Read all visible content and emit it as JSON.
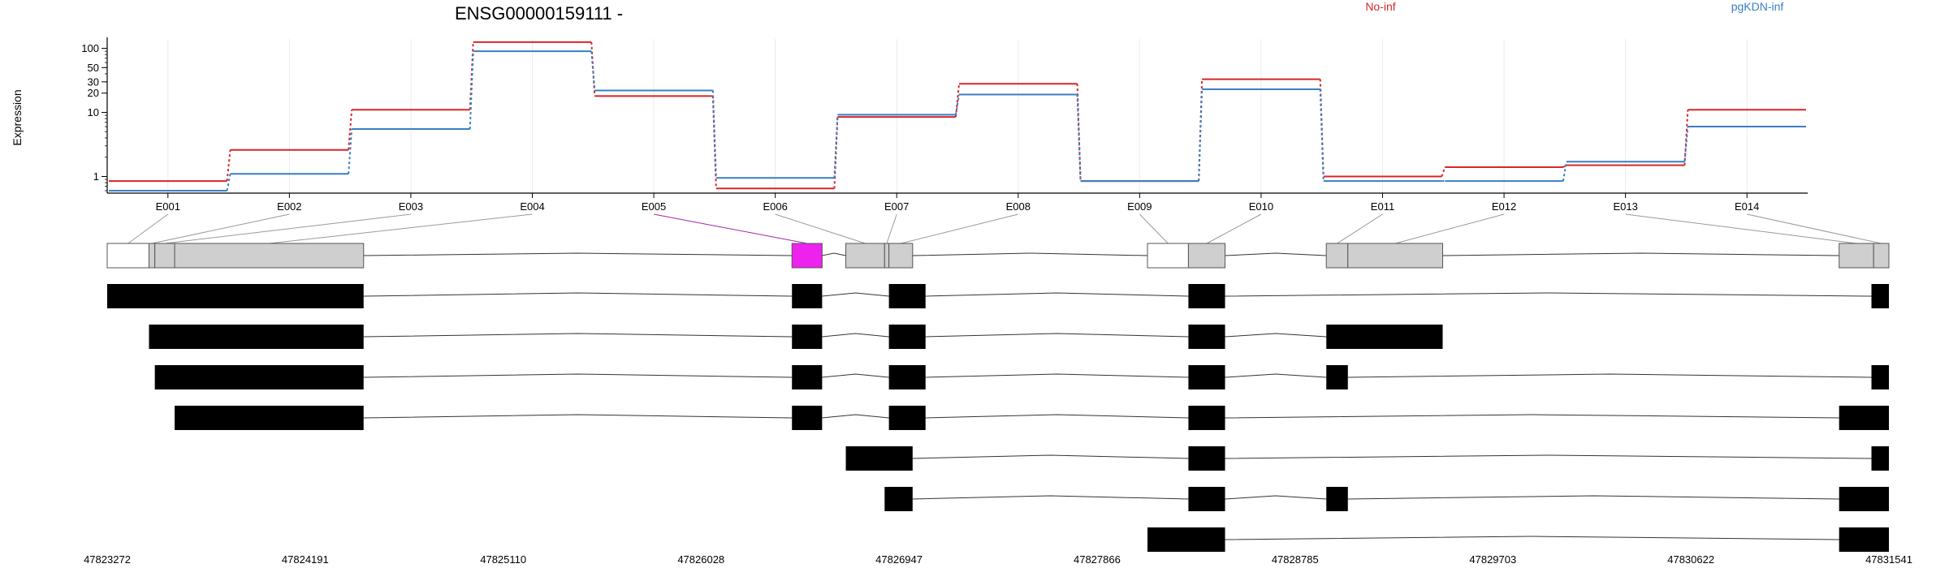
{
  "chart_data": {
    "type": "line",
    "title": "ENSG00000159111 -",
    "ylabel": "Expression",
    "yscale": "log",
    "ylim": [
      0.55,
      140
    ],
    "yticks": [
      1,
      10,
      20,
      30,
      50,
      100
    ],
    "grid": "vertical",
    "categories": [
      "E001",
      "E002",
      "E003",
      "E004",
      "E005",
      "E006",
      "E007",
      "E008",
      "E009",
      "E010",
      "E011",
      "E012",
      "E013",
      "E014"
    ],
    "series": [
      {
        "name": "No-inf",
        "color": "#d62728",
        "values": [
          0.85,
          2.6,
          11,
          125,
          18,
          0.65,
          8.5,
          28,
          0.85,
          33,
          1.0,
          1.4,
          1.5,
          11
        ]
      },
      {
        "name": "pgKDN-inf",
        "color": "#3a7fc1",
        "values": [
          0.6,
          1.1,
          5.5,
          90,
          22,
          0.95,
          9.2,
          19,
          0.85,
          23,
          0.85,
          0.85,
          1.7,
          6
        ]
      }
    ],
    "legend": "top",
    "coordinates": [
      "47823272",
      "47824191",
      "47825110",
      "47826028",
      "47826947",
      "47827866",
      "47828785",
      "47829703",
      "47830622",
      "47831541"
    ],
    "gene_model": {
      "start": 47823272,
      "end": 47831541,
      "strand": "-",
      "highlight_color": "#ee22ee",
      "exon_colors": {
        "flattened": "#cfcfcf",
        "transcript": "#000000"
      },
      "flattened_exons": [
        {
          "id": "E001",
          "start": 47823272,
          "end": 47823466,
          "fill": "#ffffff"
        },
        {
          "id": "E002",
          "start": 47823466,
          "end": 47823493,
          "fill": "#cfcfcf"
        },
        {
          "id": "E003",
          "start": 47823493,
          "end": 47823585,
          "fill": "#cfcfcf"
        },
        {
          "id": "E004",
          "start": 47823585,
          "end": 47824462,
          "fill": "#cfcfcf"
        },
        {
          "id": "E005",
          "start": 47826450,
          "end": 47826590,
          "fill": "#ee22ee"
        },
        {
          "id": "E006",
          "start": 47826700,
          "end": 47826880,
          "fill": "#cfcfcf"
        },
        {
          "id": "E007",
          "start": 47826880,
          "end": 47826900,
          "fill": "#cfcfcf"
        },
        {
          "id": "E008",
          "start": 47826900,
          "end": 47827010,
          "fill": "#cfcfcf"
        },
        {
          "id": "E009",
          "start": 47828100,
          "end": 47828290,
          "fill": "#ffffff"
        },
        {
          "id": "E010",
          "start": 47828290,
          "end": 47828460,
          "fill": "#cfcfcf"
        },
        {
          "id": "E011",
          "start": 47828930,
          "end": 47829030,
          "fill": "#cfcfcf"
        },
        {
          "id": "E012",
          "start": 47829030,
          "end": 47829470,
          "fill": "#cfcfcf"
        },
        {
          "id": "E013",
          "start": 47831310,
          "end": 47831470,
          "fill": "#cfcfcf"
        },
        {
          "id": "E014",
          "start": 47831470,
          "end": 47831541,
          "fill": "#cfcfcf"
        }
      ],
      "transcripts": [
        [
          [
            47823272,
            47824462
          ],
          [
            47826450,
            47826590
          ],
          [
            47826900,
            47827070
          ],
          [
            47828290,
            47828460
          ],
          [
            47831460,
            47831541
          ]
        ],
        [
          [
            47823466,
            47824462
          ],
          [
            47826450,
            47826590
          ],
          [
            47826900,
            47827070
          ],
          [
            47828290,
            47828460
          ],
          [
            47828930,
            47829470
          ]
        ],
        [
          [
            47823493,
            47824462
          ],
          [
            47826450,
            47826590
          ],
          [
            47826900,
            47827070
          ],
          [
            47828290,
            47828460
          ],
          [
            47828930,
            47829030
          ],
          [
            47831460,
            47831541
          ]
        ],
        [
          [
            47823585,
            47824462
          ],
          [
            47826450,
            47826590
          ],
          [
            47826900,
            47827070
          ],
          [
            47828290,
            47828460
          ],
          [
            47831310,
            47831541
          ]
        ],
        [
          [
            47826700,
            47827010
          ],
          [
            47828290,
            47828460
          ],
          [
            47831460,
            47831541
          ]
        ],
        [
          [
            47826880,
            47827010
          ],
          [
            47828290,
            47828460
          ],
          [
            47828930,
            47829030
          ],
          [
            47831310,
            47831541
          ]
        ],
        [
          [
            47828100,
            47828460
          ],
          [
            47831310,
            47831541
          ]
        ]
      ]
    }
  }
}
